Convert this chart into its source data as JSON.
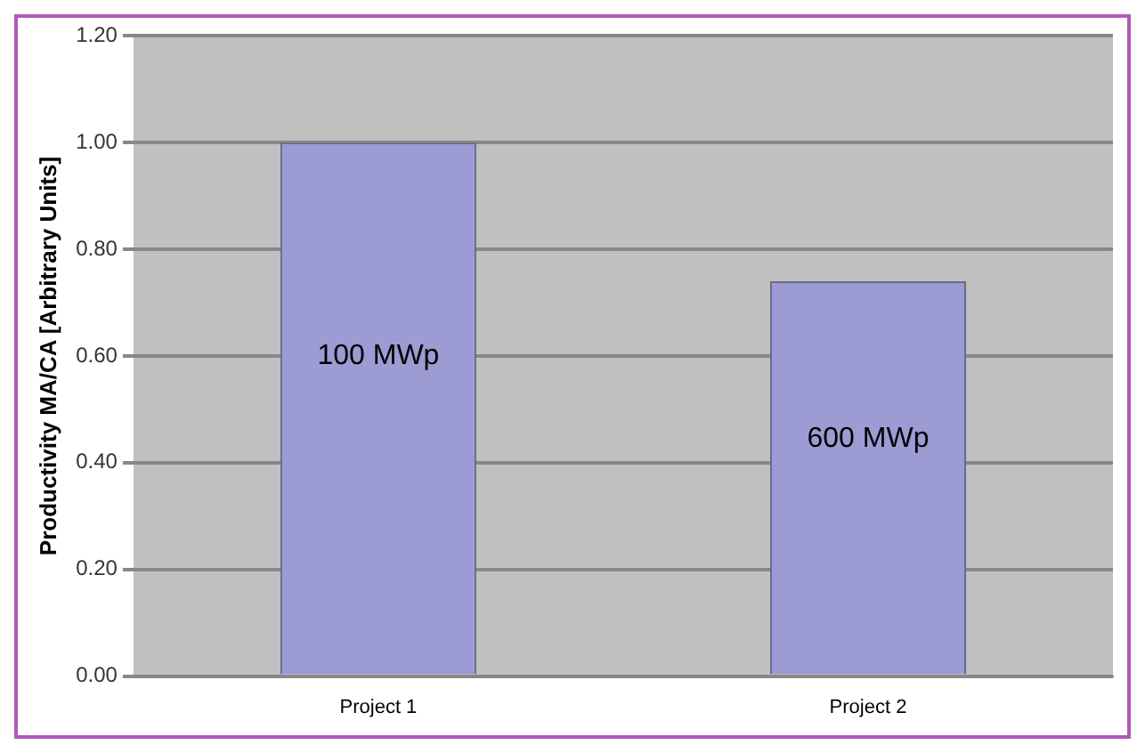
{
  "chart_data": {
    "type": "bar",
    "ylabel": "Productivity MA/CA [Arbitrary Units]",
    "categories": [
      "Project 1",
      "Project 2"
    ],
    "values": [
      1.0,
      0.74
    ],
    "color": "#9d9bd4",
    "ylim": [
      0,
      1.2
    ],
    "yticks": [
      {
        "value": 0,
        "label": "0.00"
      },
      {
        "value": 0.2,
        "label": "0.20"
      },
      {
        "value": 0.4,
        "label": "0.40"
      },
      {
        "value": 0.6,
        "label": "0.60"
      },
      {
        "value": 0.8,
        "label": "0.80"
      },
      {
        "value": 1.0,
        "label": "1.00"
      },
      {
        "value": 1.2,
        "label": "1.20"
      }
    ],
    "grid": "y",
    "annotations": [
      "100 MWp",
      "600 MWp"
    ]
  }
}
